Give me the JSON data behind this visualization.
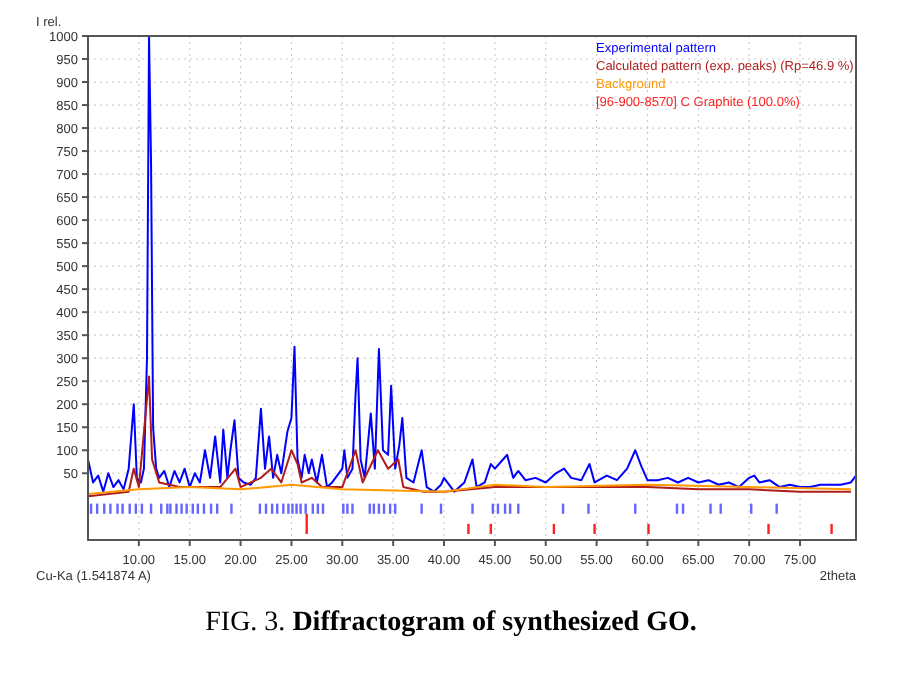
{
  "chart_data": {
    "type": "line",
    "title": "FIG. 3. Diffractogram of synthesized GO.",
    "xlabel": "2theta",
    "ylabel": "I rel.",
    "annotations": [
      "Cu-Ka (1.541874 A)"
    ],
    "xlim": [
      5,
      80.5
    ],
    "ylim": [
      -95,
      1000
    ],
    "xticks": [
      {
        "value": 10,
        "label": "10.00"
      },
      {
        "value": 15,
        "label": "15.00"
      },
      {
        "value": 20,
        "label": "20.00"
      },
      {
        "value": 25,
        "label": "25.00"
      },
      {
        "value": 30,
        "label": "30.00"
      },
      {
        "value": 35,
        "label": "35.00"
      },
      {
        "value": 40,
        "label": "40.00"
      },
      {
        "value": 45,
        "label": "45.00"
      },
      {
        "value": 50,
        "label": "50.00"
      },
      {
        "value": 55,
        "label": "55.00"
      },
      {
        "value": 60,
        "label": "60.00"
      },
      {
        "value": 65,
        "label": "65.00"
      },
      {
        "value": 70,
        "label": "70.00"
      },
      {
        "value": 75,
        "label": "75.00"
      }
    ],
    "yticks": [
      50,
      100,
      150,
      200,
      250,
      300,
      350,
      400,
      450,
      500,
      550,
      600,
      650,
      700,
      750,
      800,
      850,
      900,
      950,
      1000
    ],
    "grid": true,
    "legend": "top right",
    "line_style": "solid",
    "series": [
      {
        "name": "Experimental pattern",
        "color": "#0000ff",
        "x": [
          5,
          5.5,
          6,
          6.5,
          7,
          7.5,
          8,
          8.5,
          9,
          9.5,
          9.8,
          10.2,
          10.5,
          10.8,
          11,
          11.2,
          11.4,
          11.7,
          12,
          12.5,
          13,
          13.5,
          14,
          14.5,
          15,
          15.5,
          16,
          16.5,
          17,
          17.5,
          18,
          18.3,
          18.7,
          19,
          19.4,
          19.8,
          20.3,
          21,
          21.5,
          22,
          22.4,
          22.8,
          23.2,
          23.6,
          24,
          24.6,
          25,
          25.3,
          25.6,
          26,
          26.3,
          26.7,
          27,
          27.5,
          28,
          28.5,
          29,
          30,
          30.2,
          30.5,
          31,
          31.3,
          31.5,
          31.8,
          32.2,
          32.8,
          33.2,
          33.6,
          34,
          34.5,
          34.8,
          35.2,
          35.6,
          35.9,
          36.3,
          37,
          37.8,
          38.3,
          39,
          39.7,
          40,
          41,
          42,
          42.8,
          43.2,
          44,
          44.6,
          45,
          45.6,
          46.2,
          46.8,
          47.3,
          48,
          49,
          50,
          51,
          51.8,
          52.5,
          53.5,
          54.3,
          54.8,
          56,
          57,
          58,
          58.8,
          59.4,
          60,
          61,
          62,
          63,
          64,
          65,
          66,
          67,
          68,
          69,
          70,
          70.5,
          71,
          72,
          73,
          74,
          75,
          76,
          77,
          78,
          79,
          80,
          80.5
        ],
        "values": [
          80,
          30,
          45,
          10,
          50,
          20,
          35,
          15,
          60,
          200,
          40,
          30,
          60,
          300,
          1000,
          720,
          150,
          60,
          40,
          55,
          20,
          55,
          30,
          60,
          20,
          50,
          30,
          100,
          40,
          130,
          30,
          145,
          40,
          100,
          165,
          40,
          30,
          25,
          40,
          190,
          60,
          130,
          40,
          90,
          50,
          140,
          170,
          325,
          80,
          40,
          90,
          50,
          80,
          30,
          90,
          20,
          30,
          60,
          100,
          40,
          60,
          220,
          300,
          80,
          40,
          180,
          60,
          320,
          100,
          90,
          240,
          60,
          110,
          170,
          40,
          30,
          100,
          20,
          10,
          25,
          40,
          10,
          30,
          80,
          20,
          30,
          70,
          60,
          75,
          90,
          40,
          55,
          35,
          40,
          30,
          50,
          60,
          40,
          35,
          70,
          30,
          45,
          35,
          60,
          100,
          65,
          35,
          35,
          40,
          30,
          40,
          30,
          35,
          25,
          30,
          20,
          40,
          45,
          30,
          35,
          20,
          25,
          20,
          20,
          25,
          25,
          25,
          30,
          45
        ]
      },
      {
        "name": "Calculated pattern (exp. peaks) (Rp=46.9 %)",
        "color": "#b01c1c",
        "x": [
          5,
          9,
          9.5,
          10,
          11,
          11.3,
          12,
          14,
          16,
          18,
          19.5,
          20,
          22,
          23,
          24,
          25,
          25.6,
          26,
          27,
          28,
          30,
          31.3,
          32,
          33.5,
          34.5,
          35.5,
          36,
          38,
          40,
          45,
          50,
          55,
          60,
          65,
          70,
          75,
          80
        ],
        "values": [
          0,
          10,
          60,
          20,
          260,
          80,
          30,
          20,
          20,
          20,
          60,
          20,
          40,
          60,
          30,
          100,
          70,
          30,
          40,
          20,
          20,
          100,
          30,
          100,
          60,
          80,
          20,
          10,
          10,
          20,
          20,
          20,
          20,
          15,
          15,
          10,
          10
        ]
      },
      {
        "name": "Background",
        "color": "#ff9900",
        "x": [
          5,
          10,
          15,
          20,
          25,
          30,
          40,
          45,
          50,
          60,
          70,
          80
        ],
        "values": [
          5,
          15,
          20,
          15,
          25,
          15,
          10,
          25,
          20,
          25,
          20,
          15
        ]
      },
      {
        "type": "bar",
        "color": "#6666ff",
        "x": [
          5.3,
          5.9,
          6.6,
          7.2,
          7.9,
          8.4,
          9.1,
          9.7,
          10.3,
          11.2,
          12.2,
          12.8,
          13.1,
          13.7,
          14.2,
          14.7,
          15.3,
          15.8,
          16.4,
          17.1,
          17.7,
          19.1,
          21.9,
          22.5,
          23.1,
          23.6,
          24.2,
          24.7,
          25.1,
          25.5,
          25.9,
          26.4,
          27.1,
          27.6,
          28.1,
          30.1,
          30.5,
          31,
          32.7,
          33.1,
          33.6,
          34.1,
          34.7,
          35.2,
          37.8,
          39.7,
          42.8,
          44.8,
          45.3,
          46,
          46.5,
          47.3,
          51.7,
          54.2,
          58.8,
          62.9,
          63.5,
          66.2,
          67.2,
          70.2,
          72.7
        ],
        "base": [
          -38,
          -38,
          -38,
          -38,
          -38,
          -38,
          -38,
          -38,
          -38,
          -38,
          -38,
          -38,
          -38,
          -38,
          -38,
          -38,
          -38,
          -38,
          -38,
          -38,
          -38,
          -38,
          -38,
          -38,
          -38,
          -38,
          -38,
          -38,
          -38,
          -38,
          -38,
          -38,
          -38,
          -38,
          -38,
          -38,
          -38,
          -38,
          -38,
          -38,
          -38,
          -38,
          -38,
          -38,
          -38,
          -38,
          -38,
          -38,
          -38,
          -38,
          -38,
          -38,
          -38,
          -38,
          -38,
          -38,
          -38,
          -38,
          -38,
          -38,
          -38
        ],
        "values": [
          22,
          22,
          22,
          22,
          22,
          22,
          22,
          22,
          22,
          22,
          22,
          22,
          22,
          22,
          22,
          22,
          22,
          22,
          22,
          22,
          22,
          22,
          22,
          22,
          22,
          22,
          22,
          22,
          22,
          22,
          22,
          22,
          22,
          22,
          22,
          22,
          22,
          22,
          22,
          22,
          22,
          22,
          22,
          22,
          22,
          22,
          22,
          22,
          22,
          22,
          22,
          22,
          22,
          22,
          22,
          22,
          22,
          22,
          22,
          22,
          22
        ]
      },
      {
        "type": "bar",
        "name": "[96-900-8570] C Graphite (100.0%)",
        "color": "#ff2020",
        "x": [
          26.5,
          42.4,
          44.6,
          50.8,
          54.8,
          60.1,
          71.9,
          78.1
        ],
        "base": [
          -82,
          -82,
          -82,
          -82,
          -82,
          -82,
          -82,
          -82
        ],
        "values": [
          44,
          22,
          22,
          22,
          22,
          22,
          22,
          22
        ]
      }
    ]
  }
}
